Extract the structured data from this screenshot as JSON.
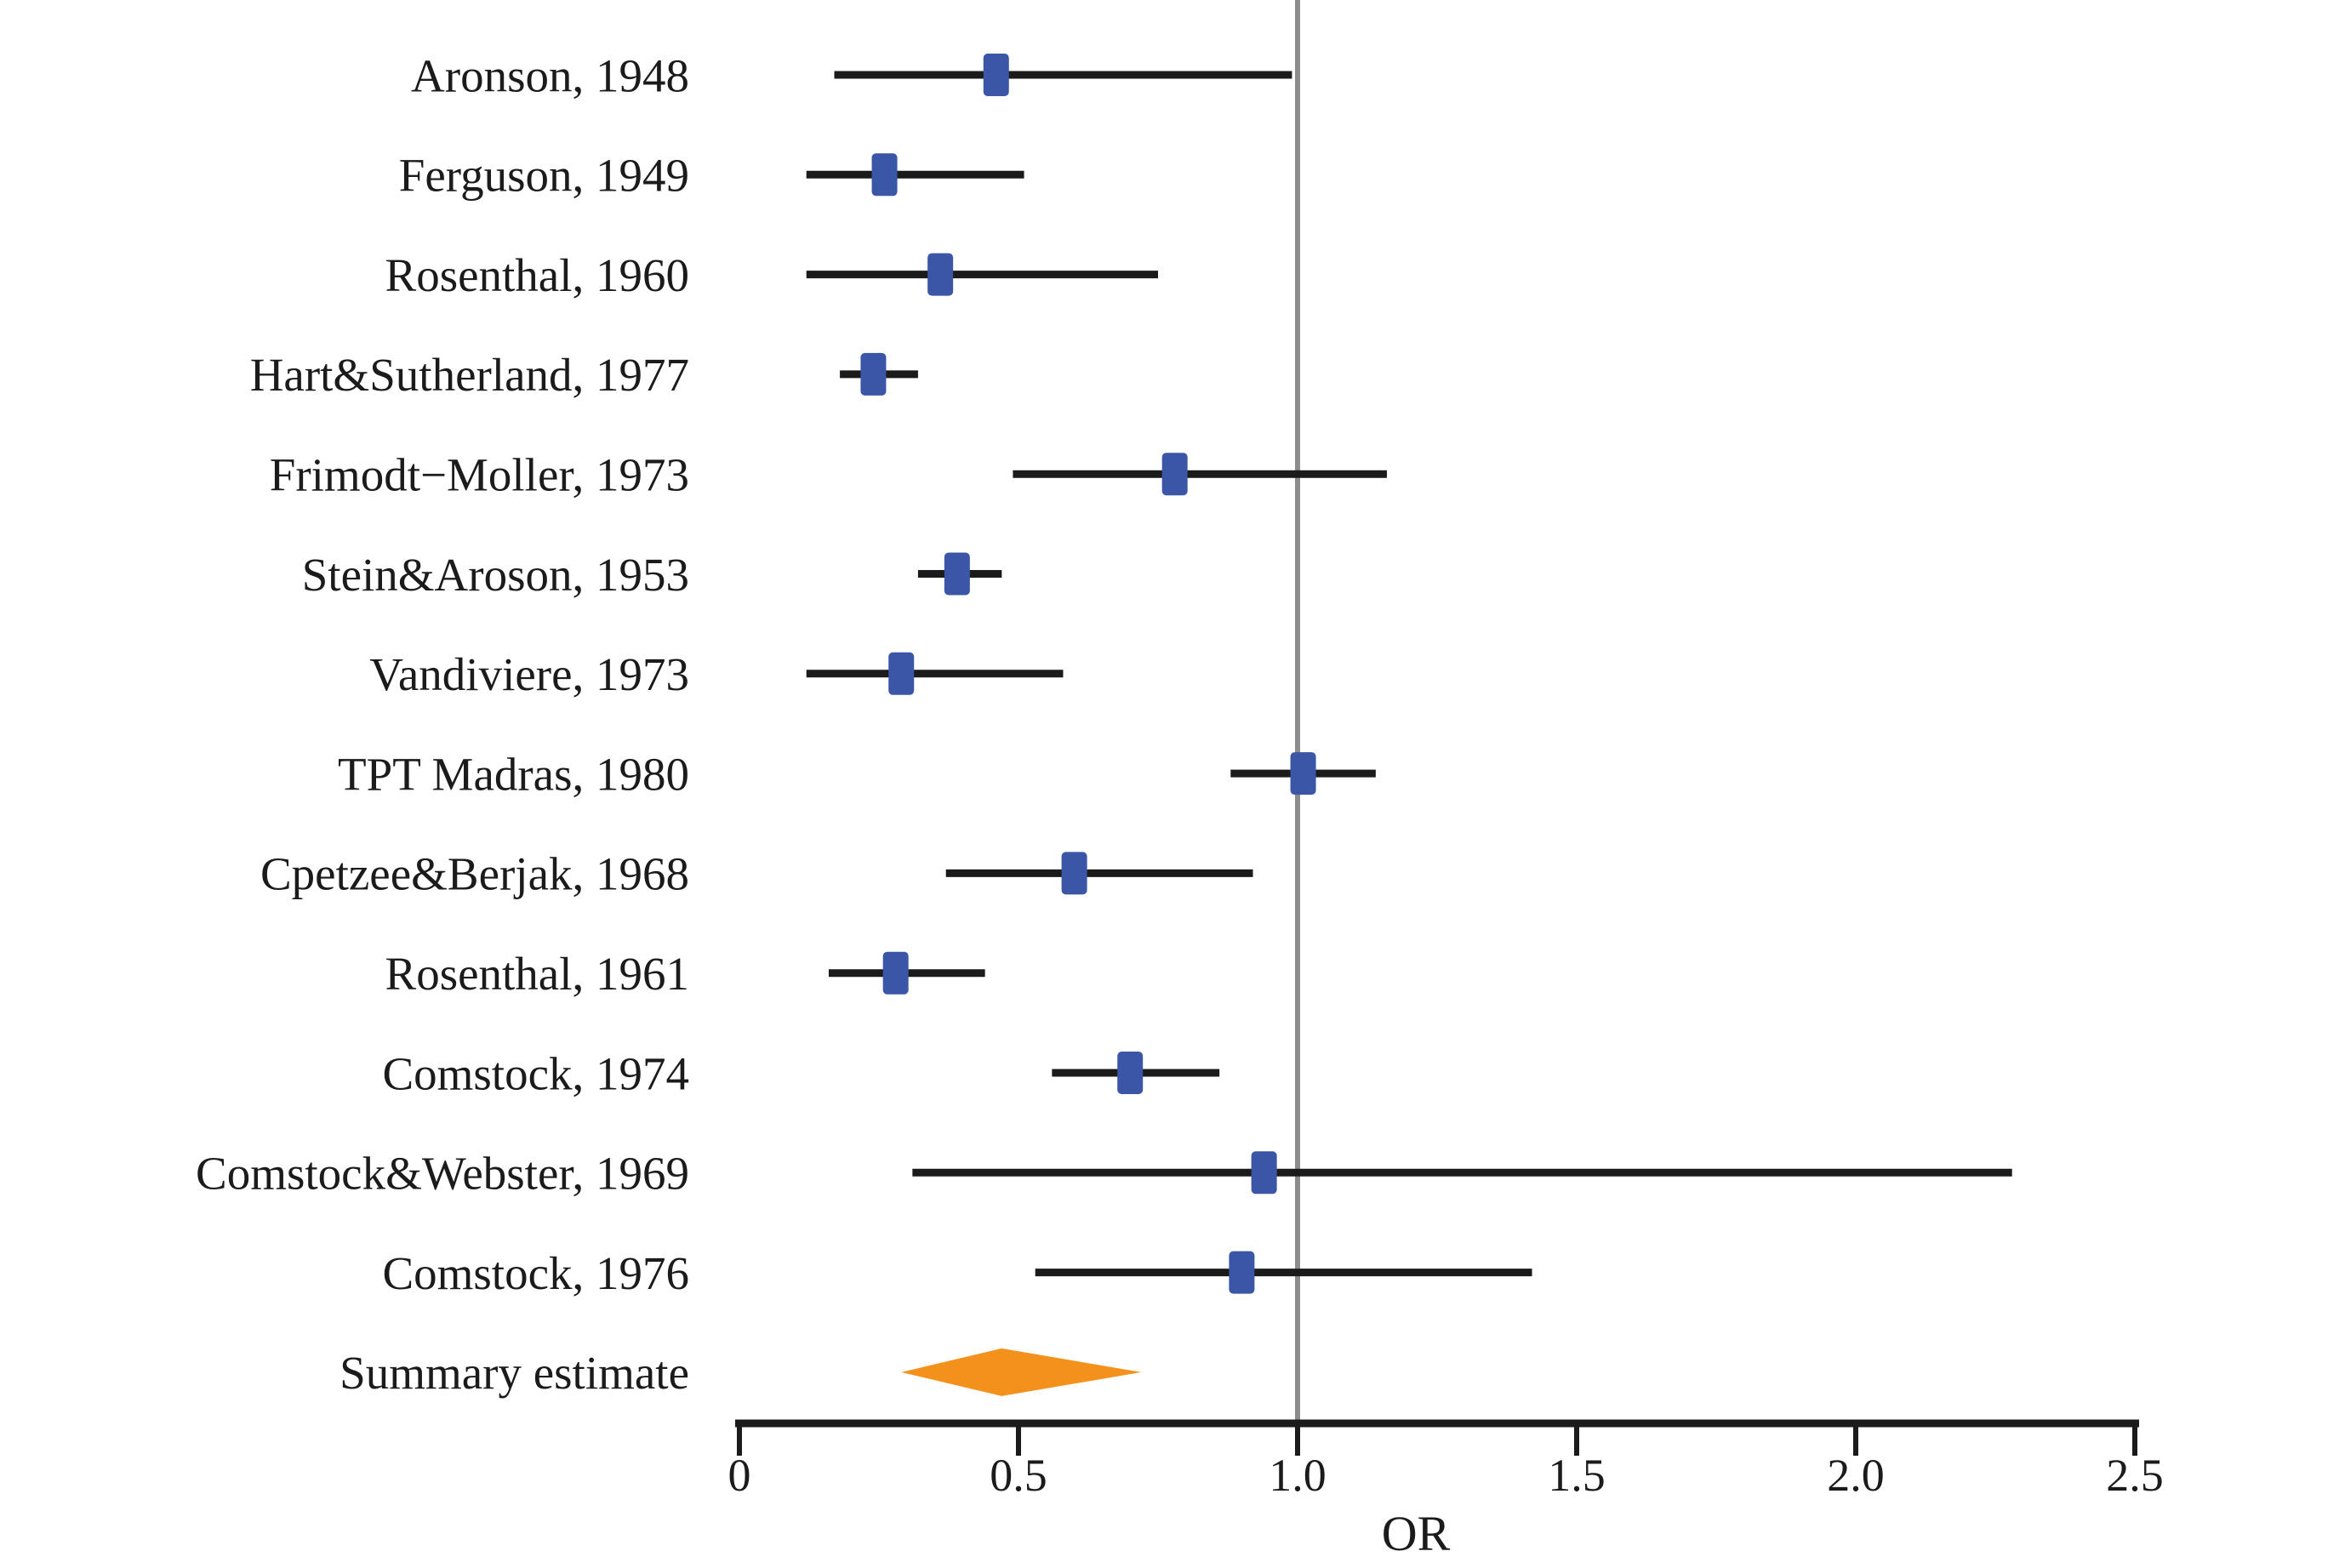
{
  "figure": {
    "xlabel": "OR"
  },
  "chart_data": {
    "type": "scatter",
    "subtype": "forest-plot",
    "title": "",
    "xlabel": "OR",
    "ylabel": "",
    "xlim": [
      0,
      2.5
    ],
    "grid": false,
    "legend": "none",
    "reference_line": 1.0,
    "x_ticks": [
      {
        "value": 0.0,
        "label": "0"
      },
      {
        "value": 0.5,
        "label": "0.5"
      },
      {
        "value": 1.0,
        "label": "1.0"
      },
      {
        "value": 1.5,
        "label": "1.5"
      },
      {
        "value": 2.0,
        "label": "2.0"
      },
      {
        "value": 2.5,
        "label": "2.5"
      }
    ],
    "studies": [
      {
        "label": "Aronson, 1948",
        "or": 0.46,
        "ci_low": 0.17,
        "ci_high": 0.99
      },
      {
        "label": "Ferguson, 1949",
        "or": 0.26,
        "ci_low": 0.12,
        "ci_high": 0.51
      },
      {
        "label": "Rosenthal, 1960",
        "or": 0.36,
        "ci_low": 0.12,
        "ci_high": 0.75
      },
      {
        "label": "Hart&Sutherland, 1977",
        "or": 0.24,
        "ci_low": 0.18,
        "ci_high": 0.32
      },
      {
        "label": "Frimodt−Moller, 1973",
        "or": 0.78,
        "ci_low": 0.49,
        "ci_high": 1.16
      },
      {
        "label": "Stein&Aroson, 1953",
        "or": 0.39,
        "ci_low": 0.32,
        "ci_high": 0.47
      },
      {
        "label": "Vandiviere, 1973",
        "or": 0.29,
        "ci_low": 0.12,
        "ci_high": 0.58
      },
      {
        "label": "TPT Madras, 1980",
        "or": 1.01,
        "ci_low": 0.88,
        "ci_high": 1.14
      },
      {
        "label": "Cpetzee&Berjak, 1968",
        "or": 0.6,
        "ci_low": 0.37,
        "ci_high": 0.92
      },
      {
        "label": "Rosenthal, 1961",
        "or": 0.28,
        "ci_low": 0.16,
        "ci_high": 0.44
      },
      {
        "label": "Comstock, 1974",
        "or": 0.7,
        "ci_low": 0.56,
        "ci_high": 0.86
      },
      {
        "label": "Comstock&Webster, 1969",
        "or": 0.94,
        "ci_low": 0.31,
        "ci_high": 2.28
      },
      {
        "label": "Comstock, 1976",
        "or": 0.9,
        "ci_low": 0.53,
        "ci_high": 1.42
      }
    ],
    "summary": {
      "label": "Summary estimate",
      "or": 0.47,
      "ci_low": 0.29,
      "ci_high": 0.72
    }
  },
  "colors": {
    "marker_blue": "#3B56A6",
    "summary_orange": "#F2921D",
    "line_black": "#1B1B1B",
    "reference_gray": "#8C8C8C",
    "background": "#FFFFFF"
  }
}
